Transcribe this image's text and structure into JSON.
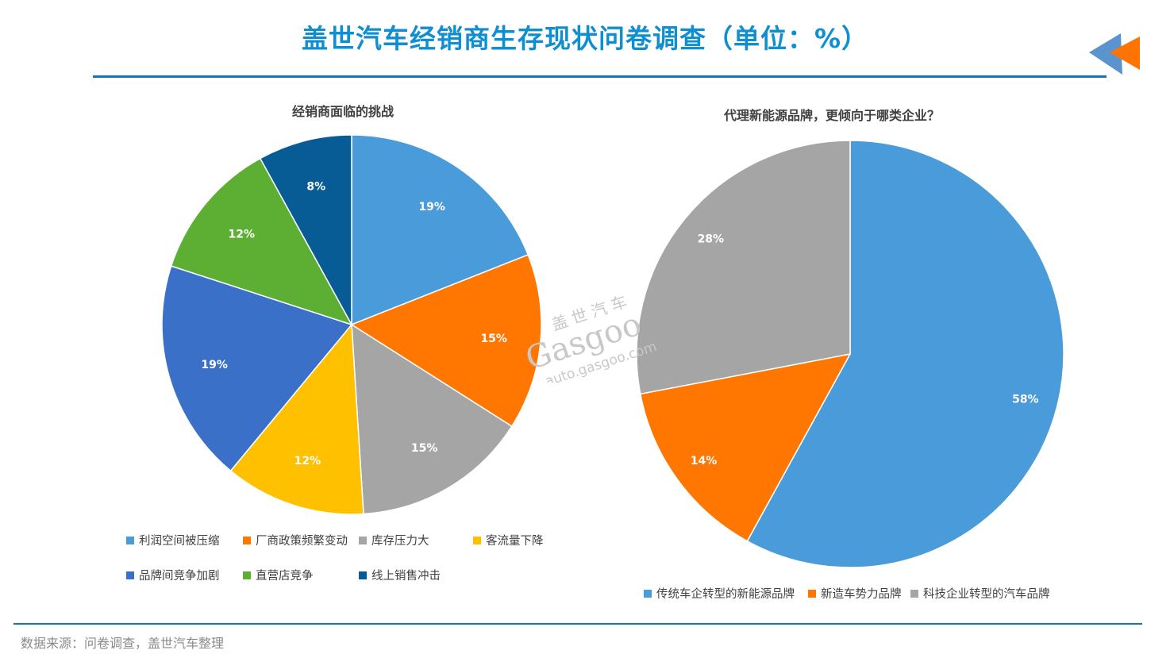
{
  "header": {
    "title": "盖世汽车经销商生存现状问卷调查（单位：%）",
    "accent_color": "#0f8fd0",
    "rule_color": "#0f75bc"
  },
  "logo": {
    "icon": "double-triangle-arrow-left-icon",
    "colors": [
      "#5b9bd5",
      "#ff7300"
    ]
  },
  "watermark": {
    "cn": "盖世汽车",
    "brand": "Gasgoo",
    "url": "auto.gasgoo.com"
  },
  "footer": {
    "source": "数据来源：问卷调查，盖世汽车整理"
  },
  "chart_data": [
    {
      "type": "pie",
      "title": "经销商面临的挑战",
      "categories": [
        "利润空间被压缩",
        "厂商政策频繁变动",
        "库存压力大",
        "客流量下降",
        "品牌间竞争加剧",
        "直营店竞争",
        "线上销售冲击"
      ],
      "values": [
        19,
        15,
        15,
        12,
        19,
        12,
        8
      ],
      "labels": [
        "19%",
        "15%",
        "15%",
        "12%",
        "19%",
        "12%",
        "8%"
      ],
      "colors": [
        "#4a9bd9",
        "#ff7700",
        "#a5a5a5",
        "#ffc000",
        "#3a70c8",
        "#5daf34",
        "#075c96"
      ],
      "start_angle": "12 o'clock, clockwise",
      "legend_position": "bottom",
      "unit": "%"
    },
    {
      "type": "pie",
      "title": "代理新能源品牌，更倾向于哪类企业？",
      "categories": [
        "传统车企转型的新能源品牌",
        "新造车势力品牌",
        "科技企业转型的汽车品牌"
      ],
      "values": [
        58,
        14,
        28
      ],
      "labels": [
        "58%",
        "14%",
        "28%"
      ],
      "colors": [
        "#4a9bd9",
        "#ff7700",
        "#a5a5a5"
      ],
      "start_angle": "12 o'clock, clockwise",
      "legend_position": "bottom",
      "unit": "%"
    }
  ]
}
